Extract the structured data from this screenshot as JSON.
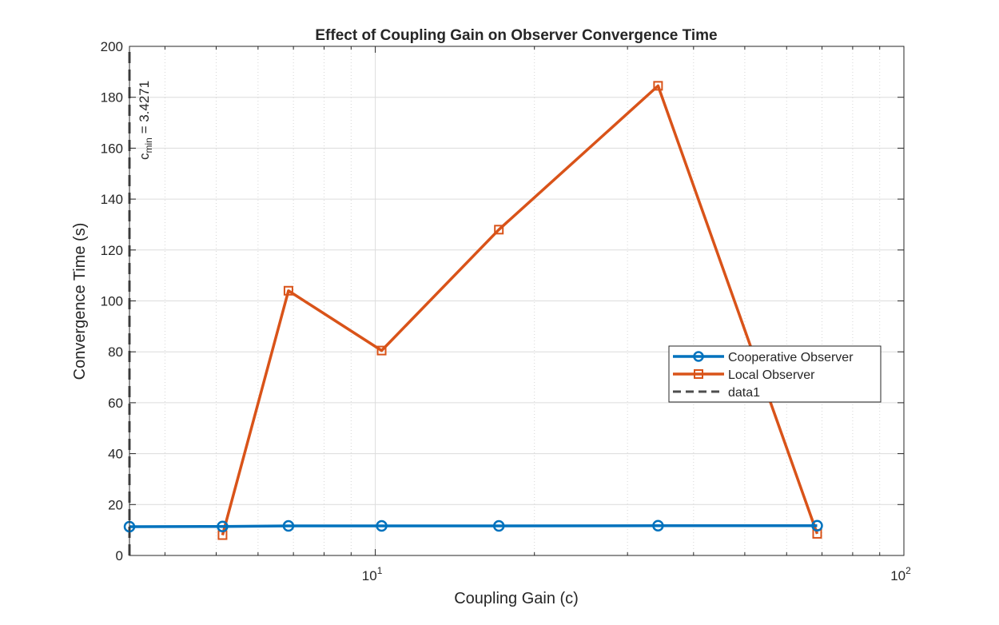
{
  "chart_data": {
    "type": "line",
    "title": "Effect of Coupling Gain on Observer Convergence Time",
    "xlabel": "Coupling Gain (c)",
    "ylabel": "Convergence Time (s)",
    "xscale": "log",
    "xlim": [
      3.4271,
      100
    ],
    "ylim": [
      0,
      200
    ],
    "yticks": [
      0,
      20,
      40,
      60,
      80,
      100,
      120,
      140,
      160,
      180,
      200
    ],
    "xticks": [
      {
        "base": "10",
        "exp": "1",
        "value": 10
      },
      {
        "base": "10",
        "exp": "2",
        "value": 100
      }
    ],
    "grid": true,
    "legend_position": "center-right",
    "series": [
      {
        "name": "Cooperative Observer",
        "color": "#0072BD",
        "marker": "circle",
        "line": "solid",
        "x": [
          3.4271,
          5.14,
          6.85,
          10.28,
          17.13,
          34.27,
          68.54
        ],
        "y": [
          11.3,
          11.4,
          11.6,
          11.6,
          11.6,
          11.7,
          11.7
        ]
      },
      {
        "name": "Local Observer",
        "color": "#D95319",
        "marker": "square",
        "line": "solid",
        "x": [
          5.14,
          6.85,
          10.28,
          17.13,
          34.27,
          68.54
        ],
        "y": [
          8,
          104,
          80.5,
          128,
          184.5,
          8.5
        ]
      },
      {
        "name": "data1",
        "color": "#4D4D4D",
        "marker": "none",
        "line": "dashed",
        "x": [
          3.4271,
          3.4271
        ],
        "y": [
          0,
          200
        ]
      }
    ],
    "annotation": {
      "base": "c",
      "sub": "min",
      "rest": " = 3.4271"
    }
  }
}
